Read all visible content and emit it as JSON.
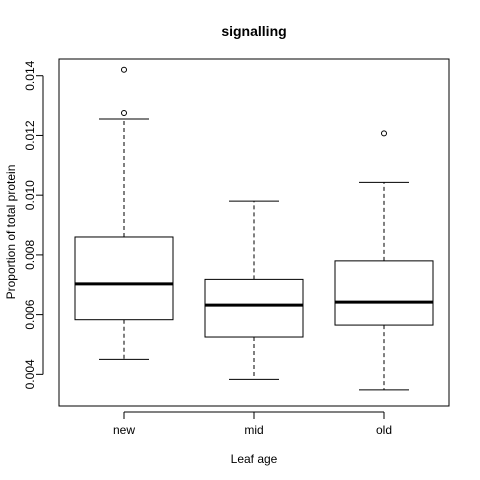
{
  "chart_data": {
    "type": "boxplot",
    "title": "signalling",
    "xlabel": "Leaf age",
    "ylabel": "Proportion of total protein",
    "ylim": [
      0.00294,
      0.01456
    ],
    "yticks": [
      "0.004",
      "0.006",
      "0.008",
      "0.010",
      "0.012",
      "0.014"
    ],
    "ytick_values": [
      0.004,
      0.006,
      0.008,
      0.01,
      0.012,
      0.014
    ],
    "categories": [
      "new",
      "mid",
      "old"
    ],
    "boxes": [
      {
        "name": "new",
        "whisker_low": 0.0045,
        "q1": 0.00583,
        "median": 0.00703,
        "q3": 0.0086,
        "whisker_high": 0.01255,
        "outliers": [
          0.01275,
          0.0142
        ]
      },
      {
        "name": "mid",
        "whisker_low": 0.00383,
        "q1": 0.00525,
        "median": 0.00632,
        "q3": 0.00718,
        "whisker_high": 0.0098,
        "outliers": []
      },
      {
        "name": "old",
        "whisker_low": 0.00348,
        "q1": 0.00565,
        "median": 0.00642,
        "q3": 0.0078,
        "whisker_high": 0.01043,
        "outliers": [
          0.01207
        ]
      }
    ],
    "grid": false,
    "legend": "none"
  }
}
